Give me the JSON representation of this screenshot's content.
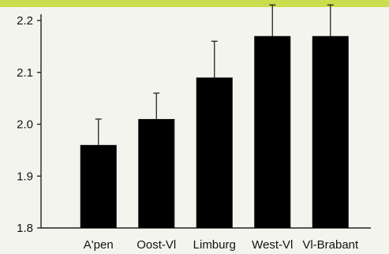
{
  "colors": {
    "background": "#f4f4ef",
    "top_band": "#c9de4c",
    "bars": "#000000",
    "axis": "#222222",
    "error_bars": "#222222"
  },
  "chart_data": {
    "type": "bar",
    "title": "",
    "xlabel": "",
    "ylabel": "",
    "categories": [
      "A'pen",
      "Oost-Vl",
      "Limburg",
      "West-Vl",
      "Vl-Brabant"
    ],
    "values": [
      1.96,
      2.01,
      2.09,
      2.17,
      2.17
    ],
    "error_upper": [
      0.05,
      0.05,
      0.07,
      0.06,
      0.06
    ],
    "ylim": [
      1.8,
      2.2
    ],
    "yticks": [
      "1.8",
      "1.9",
      "2.0",
      "2.1",
      "2.2"
    ],
    "grid": false,
    "legend": "none"
  }
}
